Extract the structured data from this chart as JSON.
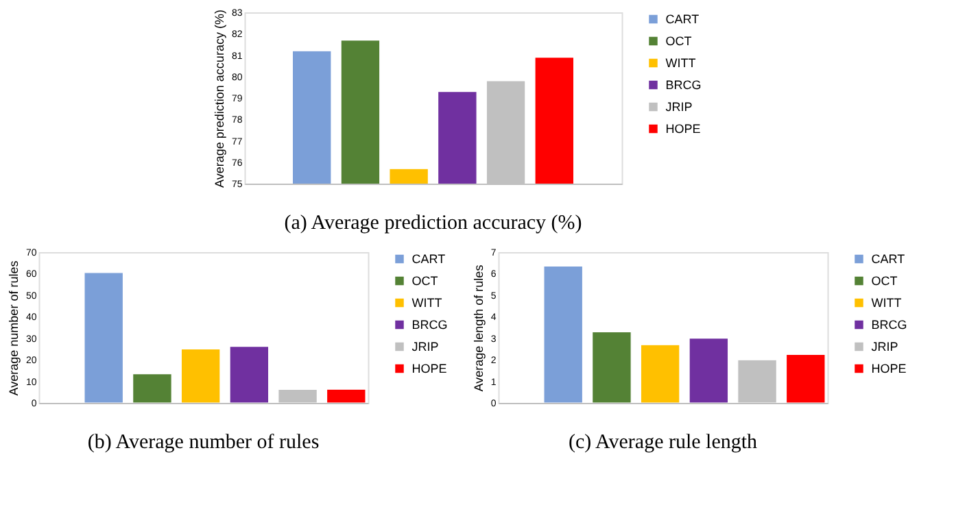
{
  "chart_data": [
    {
      "type": "bar",
      "title": "(a) Average prediction accuracy (%)",
      "ylabel": "Average prediction accuracy (%)",
      "categories": [
        null
      ],
      "ylim": [
        75,
        83
      ],
      "yticks": [
        75,
        76,
        77,
        78,
        79,
        80,
        81,
        82,
        83
      ],
      "grid": false,
      "legend": "right",
      "tick_labels": "y",
      "series": [
        {
          "name": "CART",
          "color": "#7b9fd8",
          "values": [
            81.2
          ]
        },
        {
          "name": "OCT",
          "color": "#548235",
          "values": [
            81.7
          ]
        },
        {
          "name": "WITT",
          "color": "#ffc000",
          "values": [
            75.7
          ]
        },
        {
          "name": "BRCG",
          "color": "#7030a0",
          "values": [
            79.3
          ]
        },
        {
          "name": "JRIP",
          "color": "#c0c0c0",
          "values": [
            79.8
          ]
        },
        {
          "name": "HOPE",
          "color": "#ff0000",
          "values": [
            80.9
          ]
        }
      ]
    },
    {
      "type": "bar",
      "title": "(b) Average number of rules",
      "ylabel": "Average number of rules",
      "categories": [
        null
      ],
      "ylim": [
        0,
        70
      ],
      "yticks": [
        0,
        10,
        20,
        30,
        40,
        50,
        60,
        70
      ],
      "grid": false,
      "legend": "right",
      "tick_labels": "y",
      "series": [
        {
          "name": "CART",
          "color": "#7b9fd8",
          "values": [
            60.5
          ]
        },
        {
          "name": "OCT",
          "color": "#548235",
          "values": [
            13.5
          ]
        },
        {
          "name": "WITT",
          "color": "#ffc000",
          "values": [
            25
          ]
        },
        {
          "name": "BRCG",
          "color": "#7030a0",
          "values": [
            26.2
          ]
        },
        {
          "name": "JRIP",
          "color": "#c0c0c0",
          "values": [
            6.2
          ]
        },
        {
          "name": "HOPE",
          "color": "#ff0000",
          "values": [
            6.3
          ]
        }
      ]
    },
    {
      "type": "bar",
      "title": "(c) Average rule length",
      "ylabel": "Average length of rules",
      "categories": [
        null
      ],
      "ylim": [
        0,
        7
      ],
      "yticks": [
        0,
        1,
        2,
        3,
        4,
        5,
        6,
        7
      ],
      "grid": false,
      "legend": "right",
      "tick_labels": "y",
      "series": [
        {
          "name": "CART",
          "color": "#7b9fd8",
          "values": [
            6.35
          ]
        },
        {
          "name": "OCT",
          "color": "#548235",
          "values": [
            3.3
          ]
        },
        {
          "name": "WITT",
          "color": "#ffc000",
          "values": [
            2.7
          ]
        },
        {
          "name": "BRCG",
          "color": "#7030a0",
          "values": [
            3.0
          ]
        },
        {
          "name": "JRIP",
          "color": "#c0c0c0",
          "values": [
            2.0
          ]
        },
        {
          "name": "HOPE",
          "color": "#ff0000",
          "values": [
            2.25
          ]
        }
      ]
    }
  ]
}
